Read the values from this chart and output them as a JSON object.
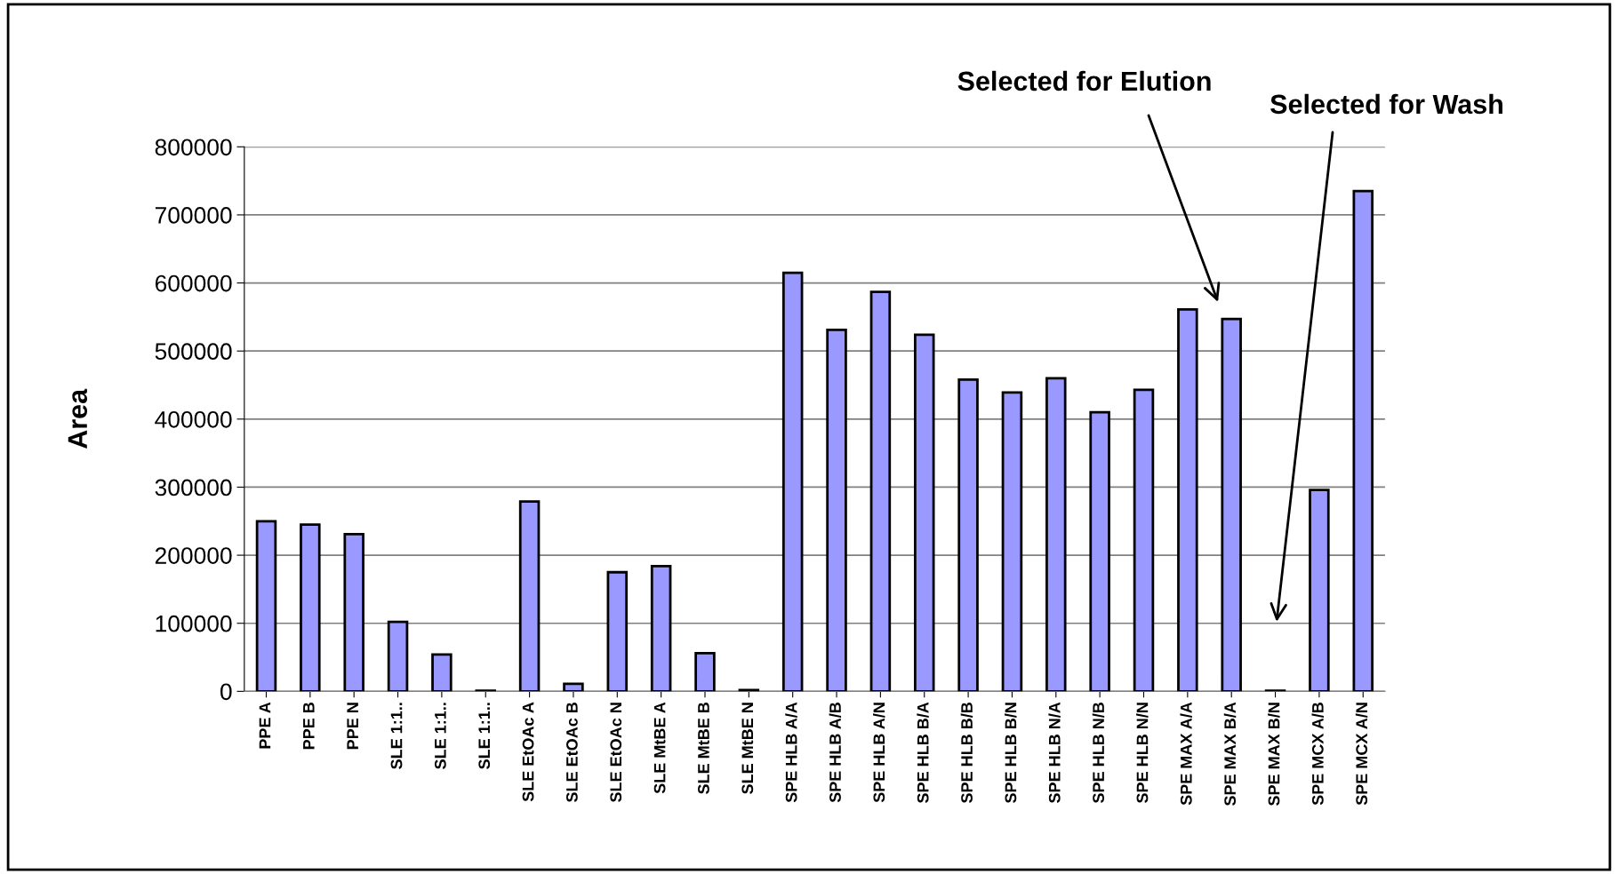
{
  "chart_data": {
    "type": "bar",
    "ylabel": "Area",
    "categories": [
      "PPE A",
      "PPE B",
      "PPE N",
      "SLE 1:1..",
      "SLE 1:1..",
      "SLE 1:1..",
      "SLE EtOAc A",
      "SLE EtOAc B",
      "SLE EtOAc N",
      "SLE MtBE A",
      "SLE MtBE B",
      "SLE MtBE N",
      "SPE HLB A/A",
      "SPE HLB A/B",
      "SPE HLB A/N",
      "SPE HLB B/A",
      "SPE HLB B/B",
      "SPE HLB B/N",
      "SPE HLB N/A",
      "SPE HLB N/B",
      "SPE HLB N/N",
      "SPE MAX A/A",
      "SPE MAX B/A",
      "SPE MAX B/N",
      "SPE MCX A/B",
      "SPE MCX A/N"
    ],
    "values": [
      250000,
      245000,
      231000,
      102000,
      54000,
      1000,
      279000,
      11000,
      175000,
      184000,
      56000,
      2000,
      615000,
      531000,
      587000,
      524000,
      458000,
      439000,
      460000,
      410000,
      443000,
      561000,
      547000,
      1000,
      296000,
      735000
    ],
    "color": "#9999ff",
    "ylim": [
      0,
      800000
    ],
    "yticks": [
      0,
      100000,
      200000,
      300000,
      400000,
      500000,
      600000,
      700000,
      800000
    ],
    "grid": "y",
    "annotations": [
      "Selected for Elution",
      "Selected for Wash"
    ]
  }
}
